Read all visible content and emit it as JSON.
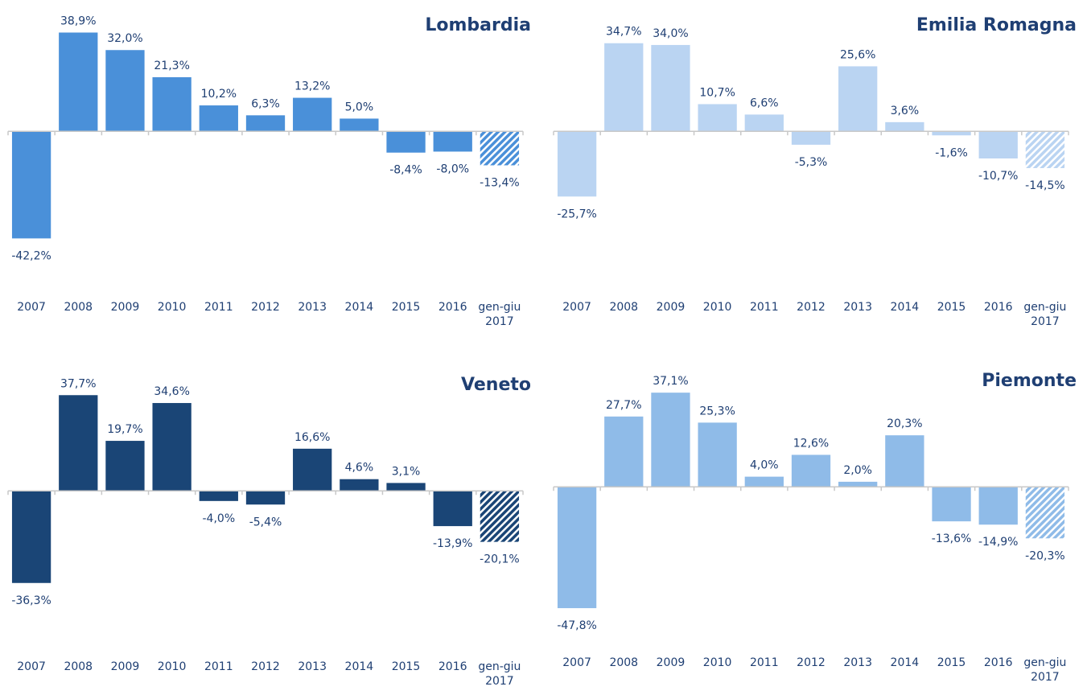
{
  "chart_data": [
    {
      "type": "bar",
      "title": "Lombardia",
      "color": "#4a90d9",
      "categories": [
        "2007",
        "2008",
        "2009",
        "2010",
        "2011",
        "2012",
        "2013",
        "2014",
        "2015",
        "2016",
        "gen-giu 2017"
      ],
      "values": [
        -42.2,
        38.9,
        32.0,
        21.3,
        10.2,
        6.3,
        13.2,
        5.0,
        -8.4,
        -8.0,
        -13.4
      ],
      "value_labels": [
        "-42,2%",
        "38,9%",
        "32,0%",
        "21,3%",
        "10,2%",
        "6,3%",
        "13,2%",
        "5,0%",
        "-8,4%",
        "-8,0%",
        "-13,4%"
      ],
      "hatched": [
        false,
        false,
        false,
        false,
        false,
        false,
        false,
        false,
        false,
        false,
        true
      ],
      "ylim": [
        -50,
        40
      ]
    },
    {
      "type": "bar",
      "title": "Emilia Romagna",
      "color": "#bad4f2",
      "categories": [
        "2007",
        "2008",
        "2009",
        "2010",
        "2011",
        "2012",
        "2013",
        "2014",
        "2015",
        "2016",
        "gen-giu 2017"
      ],
      "values": [
        -25.7,
        34.7,
        34.0,
        10.7,
        6.6,
        -5.3,
        25.6,
        3.6,
        -1.6,
        -10.7,
        -14.5
      ],
      "value_labels": [
        "-25,7%",
        "34,7%",
        "34,0%",
        "10,7%",
        "6,6%",
        "-5,3%",
        "25,6%",
        "3,6%",
        "-1,6%",
        "-10,7%",
        "-14,5%"
      ],
      "hatched": [
        false,
        false,
        false,
        false,
        false,
        false,
        false,
        false,
        false,
        false,
        true
      ],
      "ylim": [
        -50,
        40
      ]
    },
    {
      "type": "bar",
      "title": "Veneto",
      "color": "#1a4576",
      "categories": [
        "2007",
        "2008",
        "2009",
        "2010",
        "2011",
        "2012",
        "2013",
        "2014",
        "2015",
        "2016",
        "gen-giu 2017"
      ],
      "values": [
        -36.3,
        37.7,
        19.7,
        34.6,
        -4.0,
        -5.4,
        16.6,
        4.6,
        3.1,
        -13.9,
        -20.1
      ],
      "value_labels": [
        "-36,3%",
        "37,7%",
        "19,7%",
        "34,6%",
        "-4,0%",
        "-5,4%",
        "16,6%",
        "4,6%",
        "3,1%",
        "-13,9%",
        "-20,1%"
      ],
      "hatched": [
        false,
        false,
        false,
        false,
        false,
        false,
        false,
        false,
        false,
        false,
        true
      ],
      "ylim": [
        -50,
        40
      ]
    },
    {
      "type": "bar",
      "title": "Piemonte",
      "color": "#8fbbe8",
      "categories": [
        "2007",
        "2008",
        "2009",
        "2010",
        "2011",
        "2012",
        "2013",
        "2014",
        "2015",
        "2016",
        "gen-giu 2017"
      ],
      "values": [
        -47.8,
        27.7,
        37.1,
        25.3,
        4.0,
        12.6,
        2.0,
        20.3,
        -13.6,
        -14.9,
        -20.3
      ],
      "value_labels": [
        "-47,8%",
        "27,7%",
        "37,1%",
        "25,3%",
        "4,0%",
        "12,6%",
        "2,0%",
        "20,3%",
        "-13,6%",
        "-14,9%",
        "-20,3%"
      ],
      "hatched": [
        false,
        false,
        false,
        false,
        false,
        false,
        false,
        false,
        false,
        false,
        true
      ],
      "ylim": [
        -50,
        40
      ]
    }
  ]
}
